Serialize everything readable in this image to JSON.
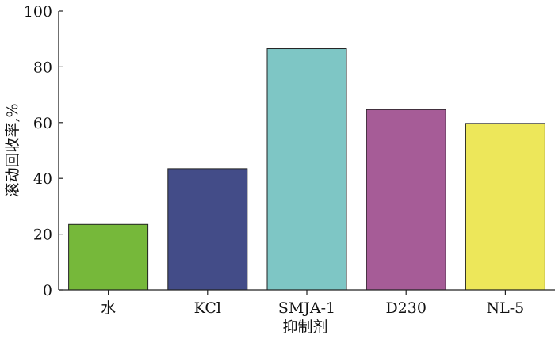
{
  "chart_data": {
    "type": "bar",
    "categories": [
      "水",
      "KCl",
      "SMJA-1",
      "D230",
      "NL-5"
    ],
    "values": [
      23.5,
      43.5,
      86.5,
      64.7,
      59.7
    ],
    "colors": [
      "#76b83a",
      "#434c88",
      "#7ec6c5",
      "#a65c97",
      "#ede75a"
    ],
    "xlabel": "抑制剂",
    "ylabel": "滚动回收率,%",
    "ylim": [
      0,
      100
    ],
    "yticks": [
      0,
      20,
      40,
      60,
      80,
      100
    ],
    "grid": false
  }
}
